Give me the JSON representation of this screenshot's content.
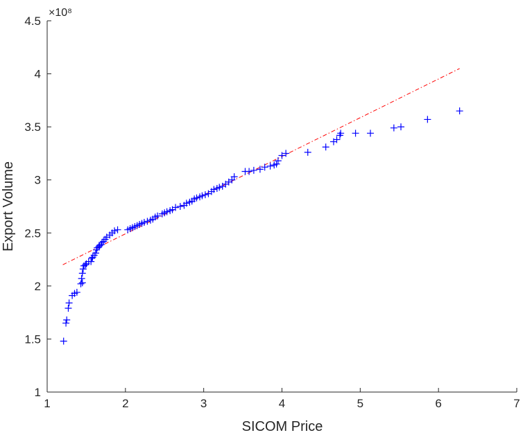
{
  "chart_data": {
    "type": "scatter",
    "title": "",
    "xlabel": "SICOM Price",
    "ylabel": "Export Volume",
    "xlim": [
      1,
      7
    ],
    "ylim": [
      1,
      4.5
    ],
    "y_exponent_label": "×10⁸",
    "x_ticks": [
      "1",
      "2",
      "3",
      "4",
      "5",
      "6",
      "7"
    ],
    "y_ticks": [
      "1",
      "1.5",
      "2",
      "2.5",
      "3",
      "3.5",
      "4",
      "4.5"
    ],
    "grid": false,
    "marker": "+",
    "colors": {
      "points": "#0000ff",
      "reference_line": "#ff0000",
      "axes": "#262626"
    },
    "reference_line": {
      "style": "dash-dot",
      "x": [
        1.2,
        6.27
      ],
      "y": [
        2.2,
        4.05
      ]
    },
    "points": [
      [
        1.21,
        1.48
      ],
      [
        1.24,
        1.65
      ],
      [
        1.25,
        1.68
      ],
      [
        1.27,
        1.79
      ],
      [
        1.28,
        1.84
      ],
      [
        1.32,
        1.91
      ],
      [
        1.35,
        1.93
      ],
      [
        1.38,
        1.94
      ],
      [
        1.43,
        2.02
      ],
      [
        1.45,
        2.03
      ],
      [
        1.44,
        2.07
      ],
      [
        1.45,
        2.12
      ],
      [
        1.46,
        2.16
      ],
      [
        1.47,
        2.19
      ],
      [
        1.49,
        2.2
      ],
      [
        1.5,
        2.21
      ],
      [
        1.53,
        2.23
      ],
      [
        1.56,
        2.23
      ],
      [
        1.57,
        2.26
      ],
      [
        1.58,
        2.27
      ],
      [
        1.6,
        2.29
      ],
      [
        1.62,
        2.31
      ],
      [
        1.63,
        2.34
      ],
      [
        1.64,
        2.36
      ],
      [
        1.66,
        2.37
      ],
      [
        1.67,
        2.38
      ],
      [
        1.69,
        2.39
      ],
      [
        1.7,
        2.41
      ],
      [
        1.72,
        2.42
      ],
      [
        1.74,
        2.44
      ],
      [
        1.76,
        2.46
      ],
      [
        1.8,
        2.48
      ],
      [
        1.83,
        2.5
      ],
      [
        1.86,
        2.52
      ],
      [
        1.9,
        2.53
      ],
      [
        2.03,
        2.53
      ],
      [
        2.06,
        2.54
      ],
      [
        2.09,
        2.55
      ],
      [
        2.12,
        2.56
      ],
      [
        2.15,
        2.57
      ],
      [
        2.18,
        2.58
      ],
      [
        2.21,
        2.59
      ],
      [
        2.24,
        2.6
      ],
      [
        2.28,
        2.61
      ],
      [
        2.32,
        2.62
      ],
      [
        2.35,
        2.63
      ],
      [
        2.38,
        2.65
      ],
      [
        2.41,
        2.66
      ],
      [
        2.47,
        2.68
      ],
      [
        2.5,
        2.69
      ],
      [
        2.53,
        2.7
      ],
      [
        2.57,
        2.71
      ],
      [
        2.6,
        2.72
      ],
      [
        2.64,
        2.74
      ],
      [
        2.7,
        2.75
      ],
      [
        2.75,
        2.76
      ],
      [
        2.78,
        2.78
      ],
      [
        2.82,
        2.79
      ],
      [
        2.85,
        2.8
      ],
      [
        2.88,
        2.82
      ],
      [
        2.91,
        2.83
      ],
      [
        2.95,
        2.84
      ],
      [
        2.98,
        2.85
      ],
      [
        3.02,
        2.86
      ],
      [
        3.06,
        2.87
      ],
      [
        3.1,
        2.89
      ],
      [
        3.13,
        2.91
      ],
      [
        3.17,
        2.92
      ],
      [
        3.2,
        2.93
      ],
      [
        3.24,
        2.94
      ],
      [
        3.28,
        2.96
      ],
      [
        3.32,
        2.98
      ],
      [
        3.36,
        3.0
      ],
      [
        3.39,
        3.03
      ],
      [
        3.53,
        3.08
      ],
      [
        3.58,
        3.08
      ],
      [
        3.64,
        3.09
      ],
      [
        3.72,
        3.1
      ],
      [
        3.78,
        3.12
      ],
      [
        3.85,
        3.13
      ],
      [
        3.9,
        3.14
      ],
      [
        3.93,
        3.15
      ],
      [
        3.95,
        3.18
      ],
      [
        4.0,
        3.23
      ],
      [
        4.05,
        3.25
      ],
      [
        4.33,
        3.26
      ],
      [
        4.56,
        3.31
      ],
      [
        4.66,
        3.36
      ],
      [
        4.7,
        3.38
      ],
      [
        4.74,
        3.42
      ],
      [
        4.75,
        3.44
      ],
      [
        4.94,
        3.44
      ],
      [
        5.13,
        3.44
      ],
      [
        5.43,
        3.49
      ],
      [
        5.52,
        3.5
      ],
      [
        5.86,
        3.57
      ],
      [
        6.27,
        3.65
      ]
    ]
  }
}
